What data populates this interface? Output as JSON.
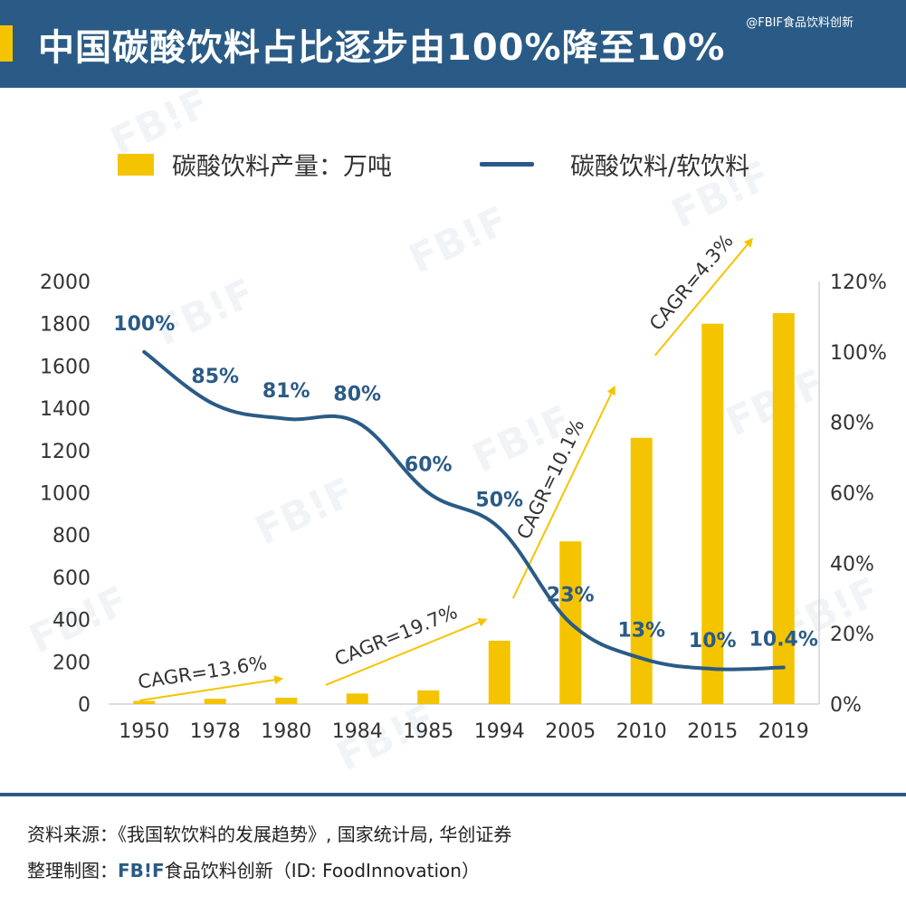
{
  "header": {
    "title": "中国碳酸饮料占比逐步由100%降至10%",
    "watermark": "@FBIF食品饮料创新"
  },
  "legend": {
    "bar_label": "碳酸饮料产量：万吨",
    "line_label": "碳酸饮料/软饮料"
  },
  "colors": {
    "bar": "#f5c400",
    "line": "#2a5b86",
    "arrow": "#f5c400",
    "header": "#2a5b86"
  },
  "chart_data": {
    "type": "bar",
    "categories": [
      "1950",
      "1978",
      "1980",
      "1984",
      "1985",
      "1994",
      "2005",
      "2010",
      "2015",
      "2019"
    ],
    "series": [
      {
        "name": "碳酸饮料产量：万吨",
        "type": "bar",
        "axis": "left",
        "values": [
          15,
          25,
          30,
          50,
          65,
          300,
          770,
          1260,
          1800,
          1850
        ]
      },
      {
        "name": "碳酸饮料/软饮料",
        "type": "line",
        "axis": "right",
        "values": [
          100,
          85,
          81,
          80,
          60,
          50,
          23,
          13,
          10,
          10.4
        ],
        "labels": [
          "100%",
          "85%",
          "81%",
          "80%",
          "60%",
          "50%",
          "23%",
          "13%",
          "10%",
          "10.4%"
        ]
      }
    ],
    "ylim": [
      0,
      2000
    ],
    "y_ticks": [
      "0",
      "200",
      "400",
      "600",
      "800",
      "1000",
      "1200",
      "1400",
      "1600",
      "1800",
      "2000"
    ],
    "y2lim": [
      0,
      120
    ],
    "y2_ticks": [
      "0%",
      "20%",
      "40%",
      "60%",
      "80%",
      "100%",
      "120%"
    ],
    "annotations": [
      {
        "text": "CAGR=13.6%",
        "from_category": "1950",
        "to_category": "1980"
      },
      {
        "text": "CAGR=19.7%",
        "from_category": "1984",
        "to_category": "1994"
      },
      {
        "text": "CAGR=10.1%",
        "from_category": "1994",
        "to_category": "2010"
      },
      {
        "text": "CAGR=4.3%",
        "from_category": "2010",
        "to_category": "2019"
      }
    ],
    "grid": false
  },
  "footer": {
    "source": "资料来源：《我国软饮料的发展趋势》, 国家统计局, 华创证券",
    "credit_prefix": "整理制图：",
    "credit_brand": "FB!F",
    "credit_text": "食品饮料创新（ID: FoodInnovation）"
  }
}
